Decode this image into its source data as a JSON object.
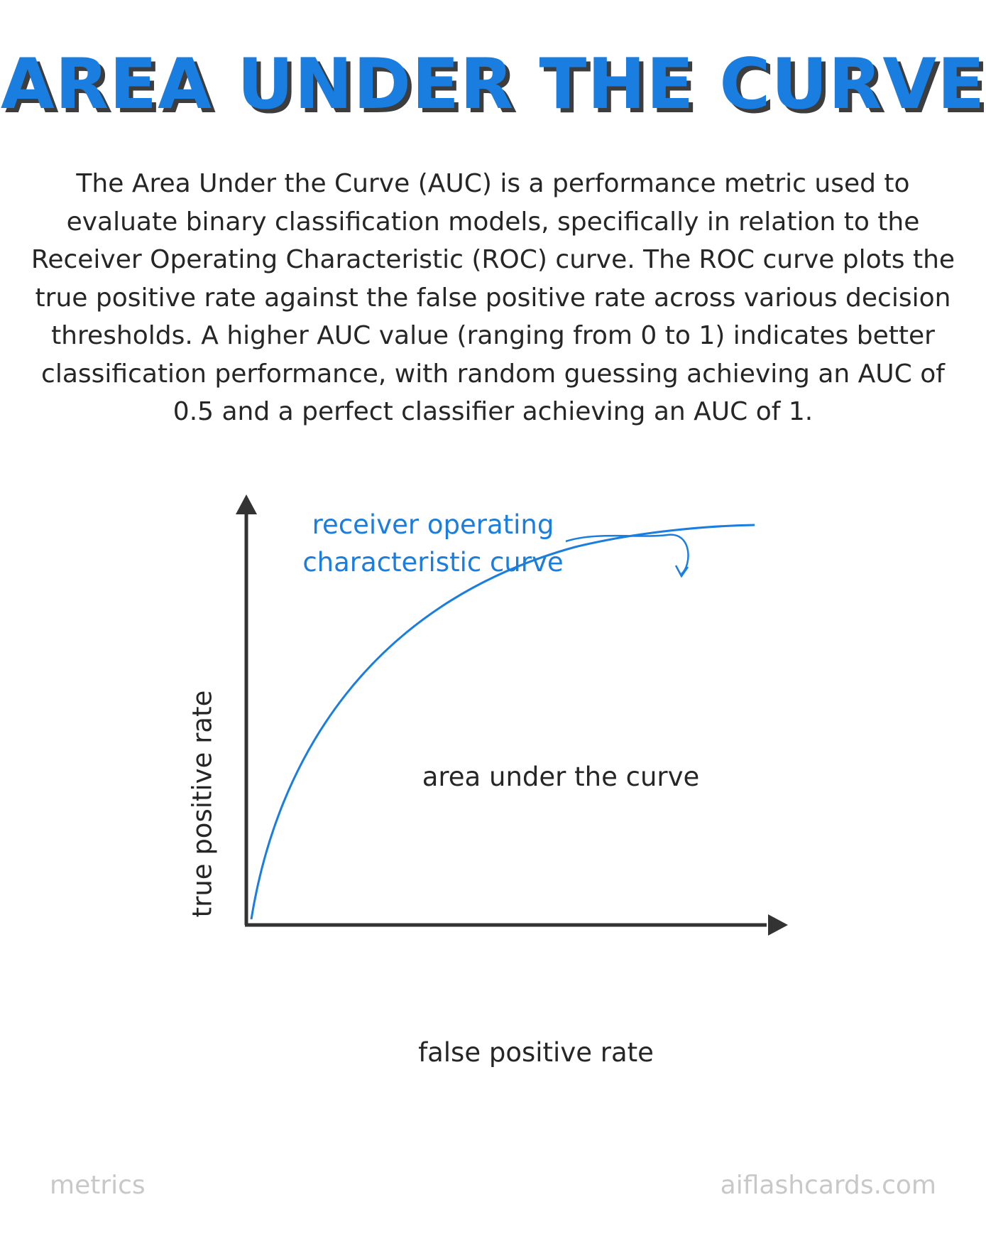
{
  "header": {
    "title": "AREA UNDER THE CURVE"
  },
  "description": "The Area Under the Curve (AUC) is a performance metric used to evaluate binary classification models, specifically in relation to the Receiver Operating Characteristic (ROC) curve. The ROC curve plots the true positive rate against the false positive rate across various decision thresholds. A higher AUC value (ranging from 0 to 1) indicates better classification performance, with random guessing achieving an AUC of 0.5 and a perfect classifier achieving an AUC of 1.",
  "diagram": {
    "x_axis_label": "false positive rate",
    "y_axis_label": "true positive rate",
    "area_label": "area under the curve",
    "curve_label_line1": "receiver operating",
    "curve_label_line2": "characteristic curve",
    "curve_color": "#1a7de0",
    "axis_color": "#333333"
  },
  "footer": {
    "category": "metrics",
    "site": "aiflashcards.com"
  }
}
